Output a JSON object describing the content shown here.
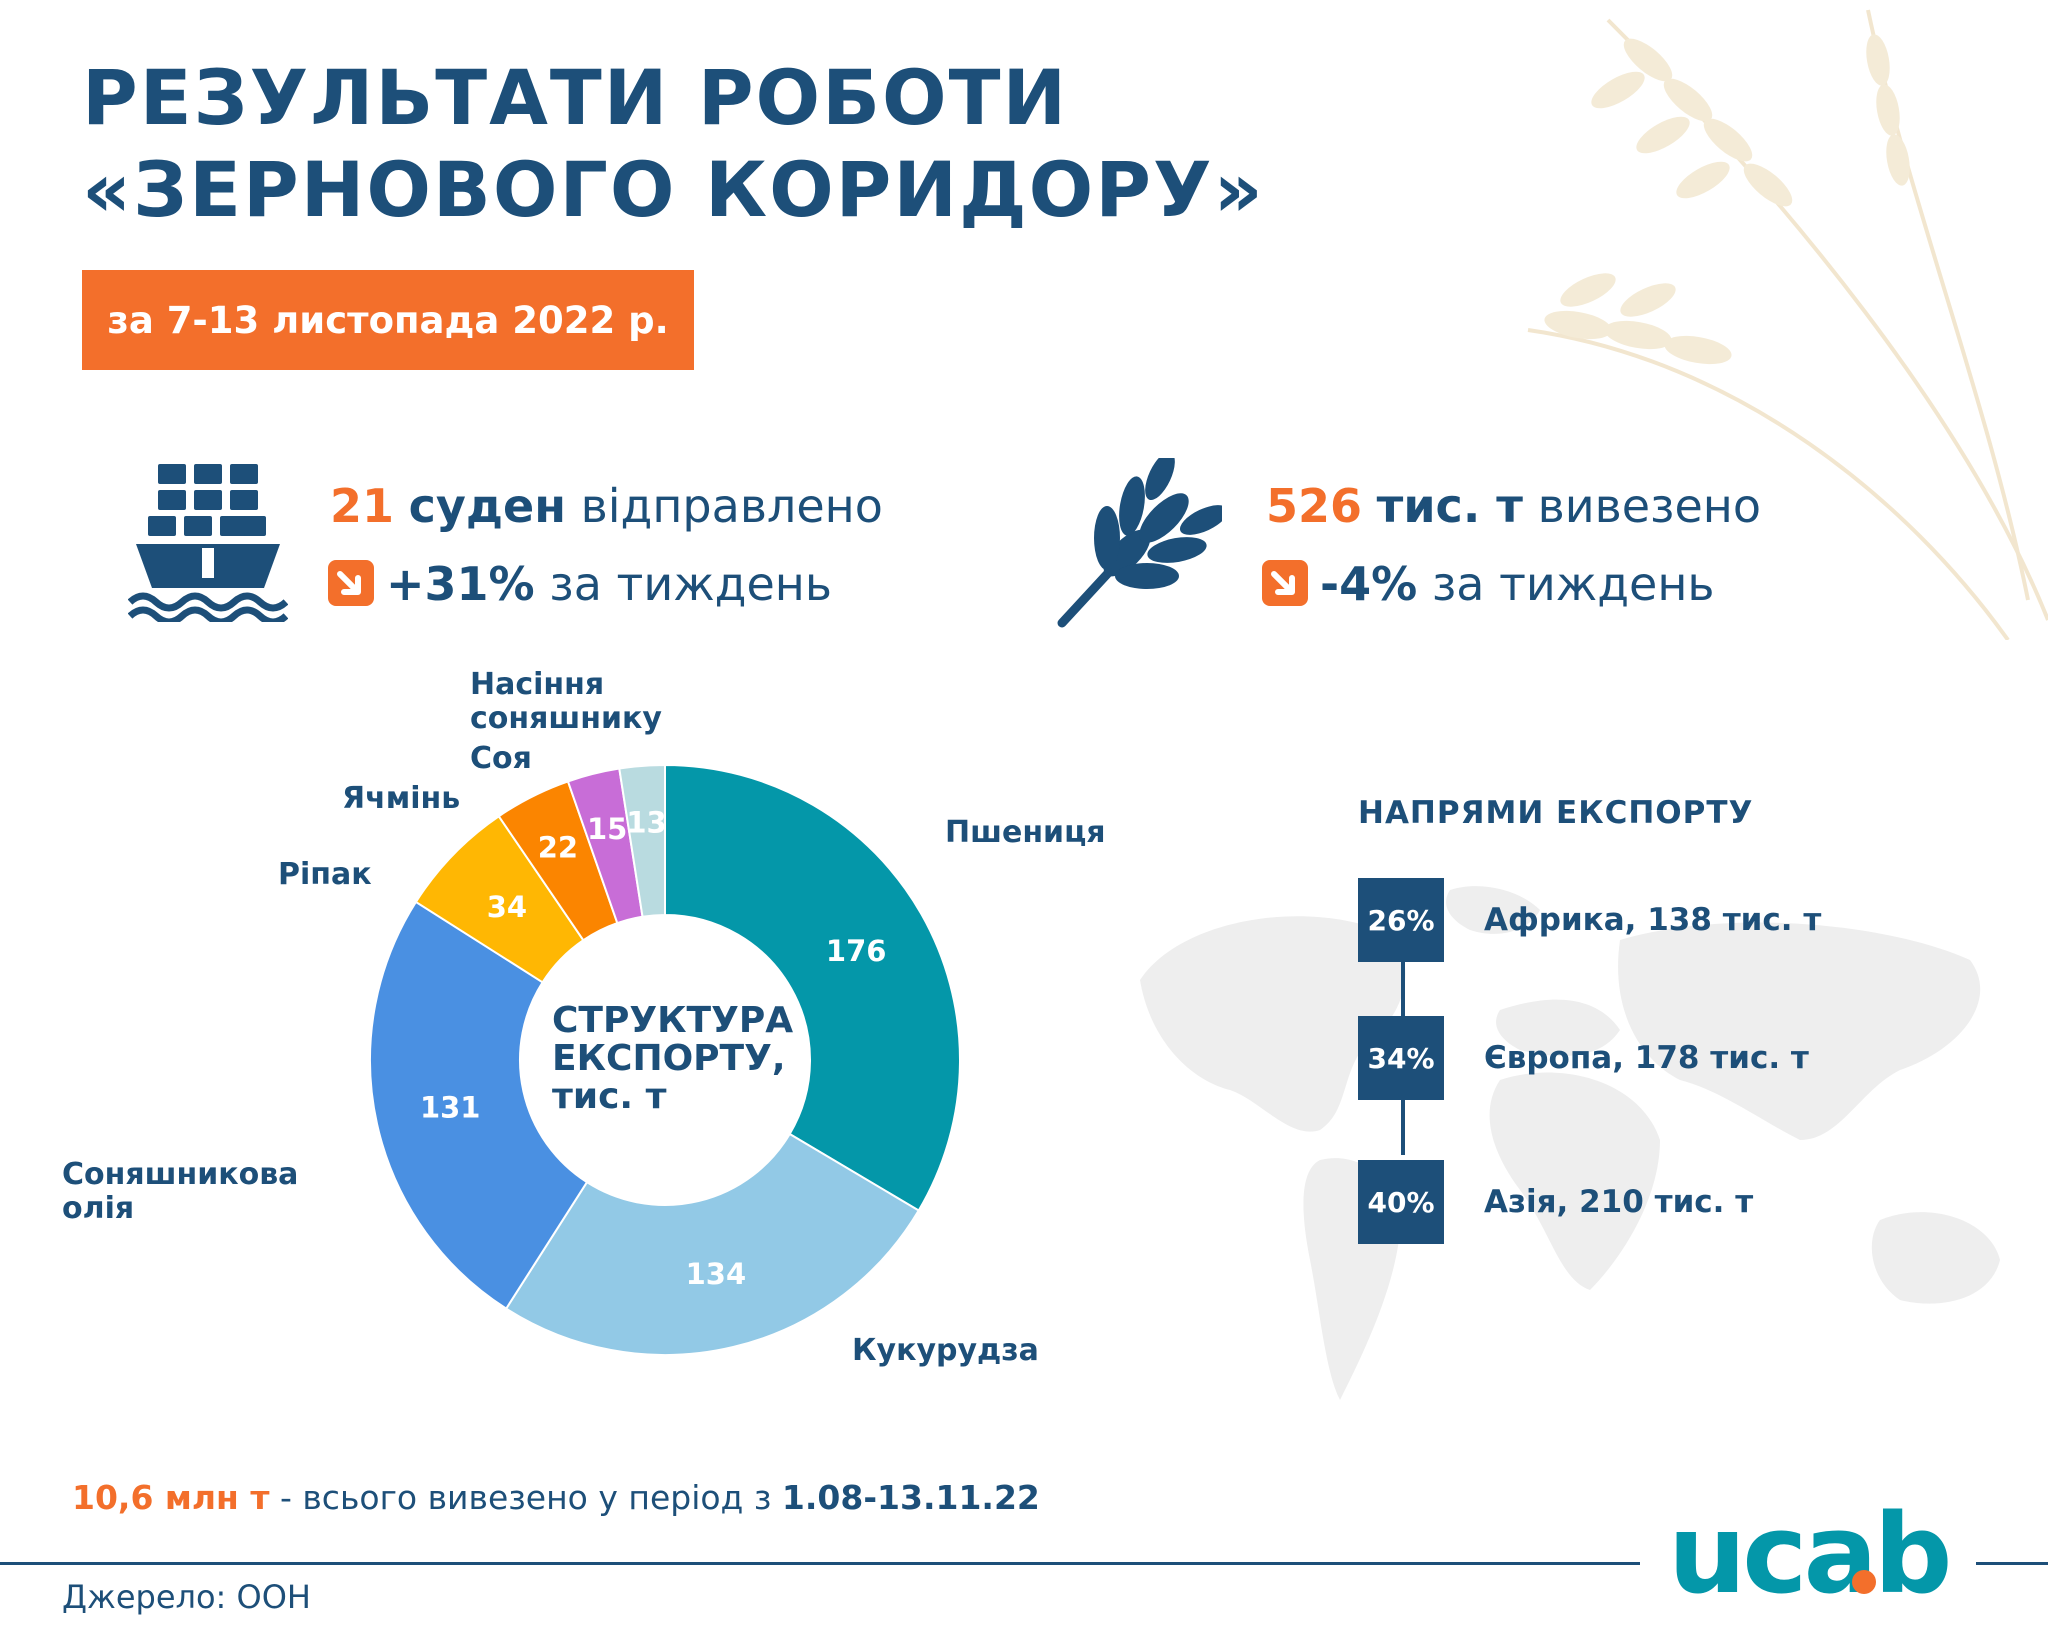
{
  "header": {
    "title_line1": "РЕЗУЛЬТАТИ РОБОТИ",
    "title_line2": "«ЗЕРНОВОГО КОРИДОРУ»",
    "period": "за 7-13 листопада 2022 р."
  },
  "stats": {
    "ships": {
      "value": "21",
      "unit": "суден",
      "verb": "відправлено",
      "change": "+31%",
      "change_suffix": "за тиждень",
      "icon": "cargo-ship-icon"
    },
    "tonnage": {
      "value": "526",
      "unit": "тис. т",
      "verb": "вивезено",
      "change": "-4%",
      "change_suffix": "за тиждень",
      "icon": "wheat-ear-icon"
    }
  },
  "chart_data": {
    "type": "donut",
    "title": "СТРУКТУРА ЕКСПОРТУ, тис. т",
    "title_lines": [
      "СТРУКТУРА",
      "ЕКСПОРТУ,",
      "тис. т"
    ],
    "categories": [
      "Пшениця",
      "Кукурудза",
      "Соняшникова олія",
      "Ріпак",
      "Ячмінь",
      "Соя",
      "Насіння соняшнику"
    ],
    "values": [
      176,
      134,
      131,
      34,
      22,
      15,
      13
    ],
    "colors": [
      "#0497a9",
      "#92c9e6",
      "#4a90e2",
      "#ffb703",
      "#fb8500",
      "#c86dd7",
      "#b9dbe0"
    ],
    "label_lines": [
      [
        "Пшениця"
      ],
      [
        "Кукурудза"
      ],
      [
        "Соняшникова",
        "олія"
      ],
      [
        "Ріпак"
      ],
      [
        "Ячмінь"
      ],
      [
        "Соя"
      ],
      [
        "Насіння",
        "соняшнику"
      ]
    ]
  },
  "directions": {
    "title": "НАПРЯМИ ЕКСПОРТУ",
    "items": [
      {
        "pct": "26%",
        "label": "Африка, 138 тис. т"
      },
      {
        "pct": "34%",
        "label": "Європа, 178 тис. т"
      },
      {
        "pct": "40%",
        "label": "Азія, 210 тис. т"
      }
    ]
  },
  "footer": {
    "total_value": "10,6 млн т",
    "total_text": " - всього вивезено у період з ",
    "total_period": "1.08-13.11.22",
    "source": "Джерело: ООН",
    "logo_text": "ucab"
  },
  "colors": {
    "primary": "#1d4f79",
    "accent": "#f36f2b",
    "logo_teal": "#0497a9"
  }
}
